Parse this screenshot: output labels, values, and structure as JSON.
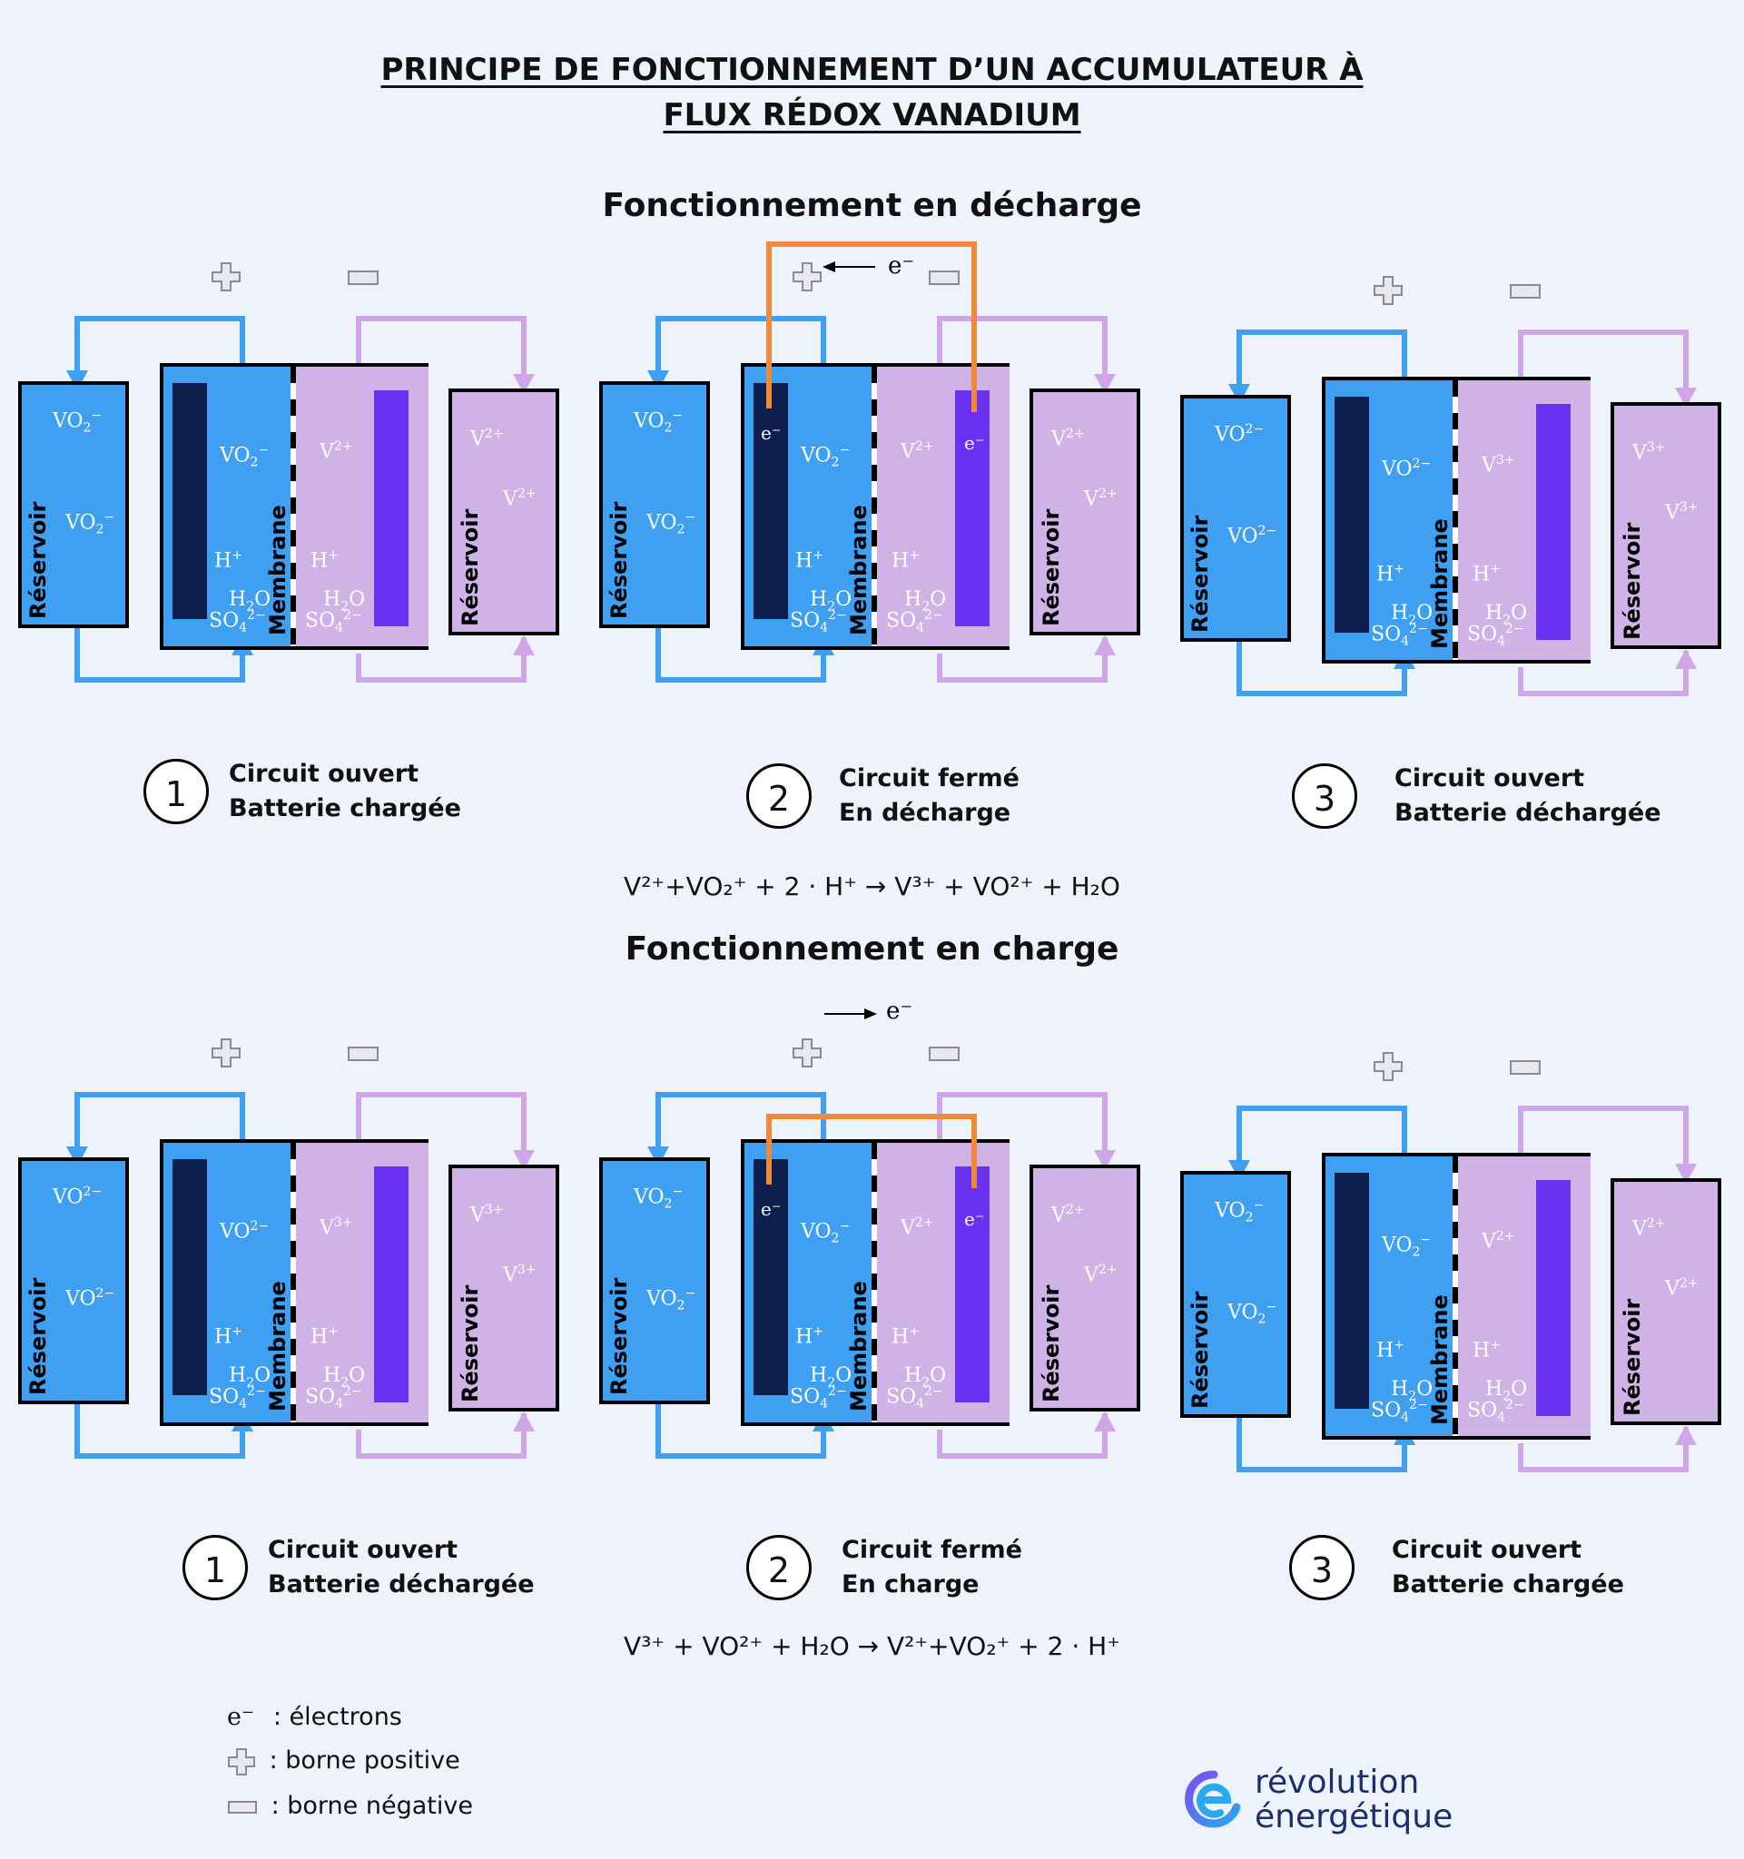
{
  "title": {
    "line1": "PRINCIPE DE FONCTIONNEMENT D’UN ACCUMULATEUR À",
    "line2": "FLUX RÉDOX VANADIUM"
  },
  "sections": {
    "discharge": {
      "heading": "Fonctionnement en décharge"
    },
    "charge": {
      "heading": "Fonctionnement en charge"
    }
  },
  "labels": {
    "reservoir": "Réservoir",
    "membrane": "Membrane",
    "electron": "e⁻"
  },
  "captions": {
    "d1": {
      "num": "1",
      "line1": "Circuit ouvert",
      "line2": "Batterie chargée"
    },
    "d2": {
      "num": "2",
      "line1": "Circuit fermé",
      "line2": "En décharge"
    },
    "d3": {
      "num": "3",
      "line1": "Circuit ouvert",
      "line2": "Batterie déchargée"
    },
    "c1": {
      "num": "1",
      "line1": "Circuit ouvert",
      "line2": "Batterie déchargée"
    },
    "c2": {
      "num": "2",
      "line1": "Circuit fermé",
      "line2": "En charge"
    },
    "c3": {
      "num": "3",
      "line1": "Circuit ouvert",
      "line2": "Batterie chargée"
    }
  },
  "equations": {
    "discharge": "V²⁺+VO₂⁺ + 2 · H⁺ → V³⁺ + VO²⁺ + H₂O",
    "charge": "V³⁺ + VO²⁺ + H₂O → V²⁺+VO₂⁺ + 2 · H⁺"
  },
  "legend": {
    "electrons": ": électrons",
    "positive": ": borne positive",
    "negative": ": borne négative"
  },
  "logo": {
    "line1": "révolution",
    "line2": "énergétique"
  },
  "colors": {
    "background": "#eef2fa",
    "posolyte": "#3f9ff0",
    "negolyte": "#d0b3e6",
    "negative_electrode": "#0e1f4f",
    "positive_electrode": "#6a32f0",
    "wire": "#f08a3a"
  }
}
